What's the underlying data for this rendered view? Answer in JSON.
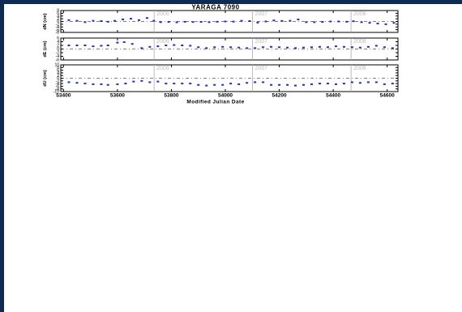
{
  "chart_data": {
    "type": "scatter",
    "title": "YARAGA 7090",
    "xlabel": "Modified Julian Date",
    "xlim": [
      53390,
      54640
    ],
    "xticks": [
      53400,
      53600,
      53800,
      54000,
      54200,
      54400,
      54600
    ],
    "year_markers": [
      {
        "mjd": 53736,
        "label": "2006"
      },
      {
        "mjd": 54101,
        "label": "2007"
      },
      {
        "mjd": 54466,
        "label": "2008"
      }
    ],
    "panels": [
      {
        "name": "dN",
        "ylabel": "dN (cm)",
        "ylim": [
          -8,
          8
        ],
        "yticks": [
          -8,
          -6,
          -4,
          -2,
          0,
          2,
          4,
          6,
          8
        ],
        "points": [
          [
            53420,
            1.0
          ],
          [
            53450,
            0.5
          ],
          [
            53480,
            -0.5
          ],
          [
            53510,
            0.5
          ],
          [
            53540,
            0.3
          ],
          [
            53565,
            -0.2
          ],
          [
            53590,
            0.5
          ],
          [
            53620,
            1.5
          ],
          [
            53650,
            2.0
          ],
          [
            53680,
            1.0
          ],
          [
            53710,
            2.5
          ],
          [
            53735,
            0.5
          ],
          [
            53760,
            -0.5
          ],
          [
            53790,
            -0.3
          ],
          [
            53820,
            -0.6
          ],
          [
            53850,
            -0.2
          ],
          [
            53880,
            -0.4
          ],
          [
            53910,
            -0.3
          ],
          [
            53940,
            -0.5
          ],
          [
            53970,
            -0.2
          ],
          [
            54000,
            0.0
          ],
          [
            54030,
            -0.1
          ],
          [
            54060,
            0.5
          ],
          [
            54090,
            0.3
          ],
          [
            54120,
            -0.8
          ],
          [
            54150,
            0.0
          ],
          [
            54180,
            0.8
          ],
          [
            54210,
            0.4
          ],
          [
            54240,
            0.5
          ],
          [
            54270,
            1.5
          ],
          [
            54300,
            -0.5
          ],
          [
            54330,
            -0.5
          ],
          [
            54360,
            -0.3
          ],
          [
            54390,
            0.0
          ],
          [
            54420,
            0.0
          ],
          [
            54450,
            -0.2
          ],
          [
            54475,
            0.2
          ],
          [
            54505,
            -0.5
          ],
          [
            54535,
            -1.0
          ],
          [
            54565,
            -1.5
          ],
          [
            54595,
            -2.0
          ],
          [
            54625,
            -1.0
          ]
        ]
      },
      {
        "name": "dE",
        "ylabel": "dE (cm)",
        "ylim": [
          -6,
          6
        ],
        "yticks": [
          -6,
          -4,
          -2,
          0,
          2,
          4,
          6
        ],
        "points": [
          [
            53420,
            2.0
          ],
          [
            53450,
            2.0
          ],
          [
            53480,
            2.0
          ],
          [
            53510,
            1.5
          ],
          [
            53540,
            1.8
          ],
          [
            53565,
            2.0
          ],
          [
            53600,
            3.5
          ],
          [
            53625,
            3.8
          ],
          [
            53655,
            2.8
          ],
          [
            53690,
            0.5
          ],
          [
            53720,
            1.2
          ],
          [
            53750,
            1.5
          ],
          [
            53780,
            2.0
          ],
          [
            53810,
            2.2
          ],
          [
            53840,
            2.0
          ],
          [
            53870,
            1.8
          ],
          [
            53900,
            1.0
          ],
          [
            53930,
            0.5
          ],
          [
            53960,
            1.0
          ],
          [
            53990,
            1.2
          ],
          [
            54020,
            1.0
          ],
          [
            54050,
            0.8
          ],
          [
            54080,
            0.5
          ],
          [
            54110,
            0.5
          ],
          [
            54140,
            1.0
          ],
          [
            54170,
            1.2
          ],
          [
            54200,
            1.0
          ],
          [
            54230,
            0.8
          ],
          [
            54260,
            0.5
          ],
          [
            54290,
            0.8
          ],
          [
            54320,
            1.0
          ],
          [
            54350,
            1.2
          ],
          [
            54380,
            1.0
          ],
          [
            54410,
            1.5
          ],
          [
            54440,
            1.2
          ],
          [
            54470,
            1.0
          ],
          [
            54500,
            0.8
          ],
          [
            54530,
            1.2
          ],
          [
            54560,
            1.8
          ],
          [
            54590,
            1.0
          ],
          [
            54620,
            0.5
          ]
        ]
      },
      {
        "name": "dU",
        "ylabel": "dU (cm)",
        "ylim": [
          -10,
          10
        ],
        "yticks": [
          -10,
          -8,
          -6,
          -4,
          -2,
          0,
          2,
          4,
          6,
          8,
          10
        ],
        "points": [
          [
            53420,
            -3.0
          ],
          [
            53450,
            -3.5
          ],
          [
            53480,
            -4.0
          ],
          [
            53510,
            -4.5
          ],
          [
            53540,
            -4.5
          ],
          [
            53565,
            -5.0
          ],
          [
            53600,
            -4.5
          ],
          [
            53630,
            -4.0
          ],
          [
            53660,
            -2.5
          ],
          [
            53690,
            -2.0
          ],
          [
            53720,
            -3.0
          ],
          [
            53750,
            -2.5
          ],
          [
            53780,
            -4.0
          ],
          [
            53810,
            -4.0
          ],
          [
            53840,
            -4.0
          ],
          [
            53870,
            -4.0
          ],
          [
            53900,
            -5.0
          ],
          [
            53930,
            -5.5
          ],
          [
            53960,
            -5.0
          ],
          [
            53990,
            -5.0
          ],
          [
            54020,
            -4.0
          ],
          [
            54050,
            -4.5
          ],
          [
            54080,
            -3.5
          ],
          [
            54110,
            -3.0
          ],
          [
            54140,
            -3.0
          ],
          [
            54170,
            -5.0
          ],
          [
            54200,
            -5.0
          ],
          [
            54230,
            -5.0
          ],
          [
            54260,
            -5.5
          ],
          [
            54290,
            -5.0
          ],
          [
            54320,
            -4.5
          ],
          [
            54350,
            -4.0
          ],
          [
            54380,
            -4.0
          ],
          [
            54410,
            -4.5
          ],
          [
            54440,
            -4.0
          ],
          [
            54470,
            -3.0
          ],
          [
            54500,
            -3.5
          ],
          [
            54530,
            -3.0
          ],
          [
            54560,
            -3.0
          ],
          [
            54590,
            -4.5
          ],
          [
            54620,
            -4.0
          ]
        ]
      }
    ]
  }
}
